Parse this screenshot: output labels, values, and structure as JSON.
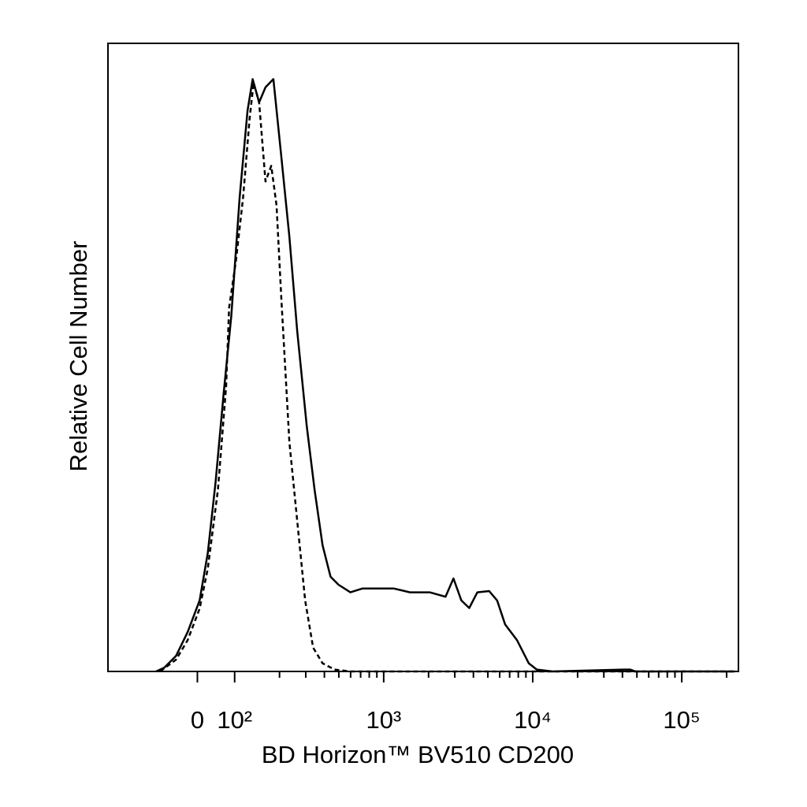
{
  "chart_data": {
    "type": "line",
    "xlabel": "BD Horizon™ BV510 CD200",
    "ylabel": "Relative Cell Number",
    "xscale": "biexponential",
    "xlim": [
      -240,
      240000
    ],
    "ylim": [
      0,
      100
    ],
    "xticks": [
      0,
      {
        "value": 100,
        "label": "10²"
      },
      {
        "value": 1000,
        "label": "10³"
      },
      {
        "value": 10000,
        "label": "10⁴"
      },
      {
        "value": 100000,
        "label": "10⁵"
      }
    ],
    "xminor_ticks": [
      200,
      300,
      400,
      500,
      600,
      700,
      800,
      900,
      2000,
      3000,
      4000,
      5000,
      6000,
      7000,
      8000,
      9000,
      20000,
      30000,
      40000,
      50000,
      60000,
      70000,
      80000,
      90000,
      200000
    ],
    "series": [
      {
        "color": "#000000",
        "dashed": false,
        "x": [
          -111,
          -89,
          -57,
          -26,
          6,
          28,
          49,
          70,
          91,
          108,
          122,
          132,
          146,
          161,
          182,
          206,
          233,
          263,
          305,
          344,
          389,
          440,
          498,
          598,
          718,
          918,
          1172,
          1500,
          2036,
          2600,
          2940,
          3320,
          3750,
          4250,
          5100,
          5770,
          6520,
          7830,
          9400,
          10640,
          13600,
          40900,
          45000,
          49000,
          227000
        ],
        "values": [
          0,
          0.6,
          2.5,
          6.3,
          11.3,
          18.9,
          30.2,
          44,
          56.6,
          75.5,
          89.3,
          94.3,
          90.6,
          93,
          94.3,
          81.8,
          69.2,
          54.1,
          39,
          28.9,
          20.1,
          15.1,
          13.8,
          12.6,
          13.2,
          13.2,
          13.2,
          12.6,
          12.6,
          11.9,
          14.8,
          11.3,
          10.1,
          12.6,
          12.8,
          11.3,
          7.5,
          5,
          1.3,
          0.3,
          0,
          0.3,
          0.3,
          0,
          0
        ]
      },
      {
        "color": "#000000",
        "dashed": true,
        "x": [
          -100,
          -57,
          -26,
          6,
          28,
          55,
          77,
          85,
          102,
          114,
          126,
          134,
          146,
          161,
          176,
          191,
          206,
          233,
          263,
          297,
          336,
          389,
          468,
          598,
          227000
        ],
        "values": [
          0,
          1.9,
          5,
          10,
          16.4,
          28.9,
          45.3,
          57.9,
          65.4,
          75.5,
          88,
          93.7,
          90.6,
          78,
          80.5,
          74.2,
          59.1,
          36.5,
          23.9,
          11.3,
          3.8,
          1.3,
          0.3,
          0,
          0
        ]
      }
    ]
  }
}
